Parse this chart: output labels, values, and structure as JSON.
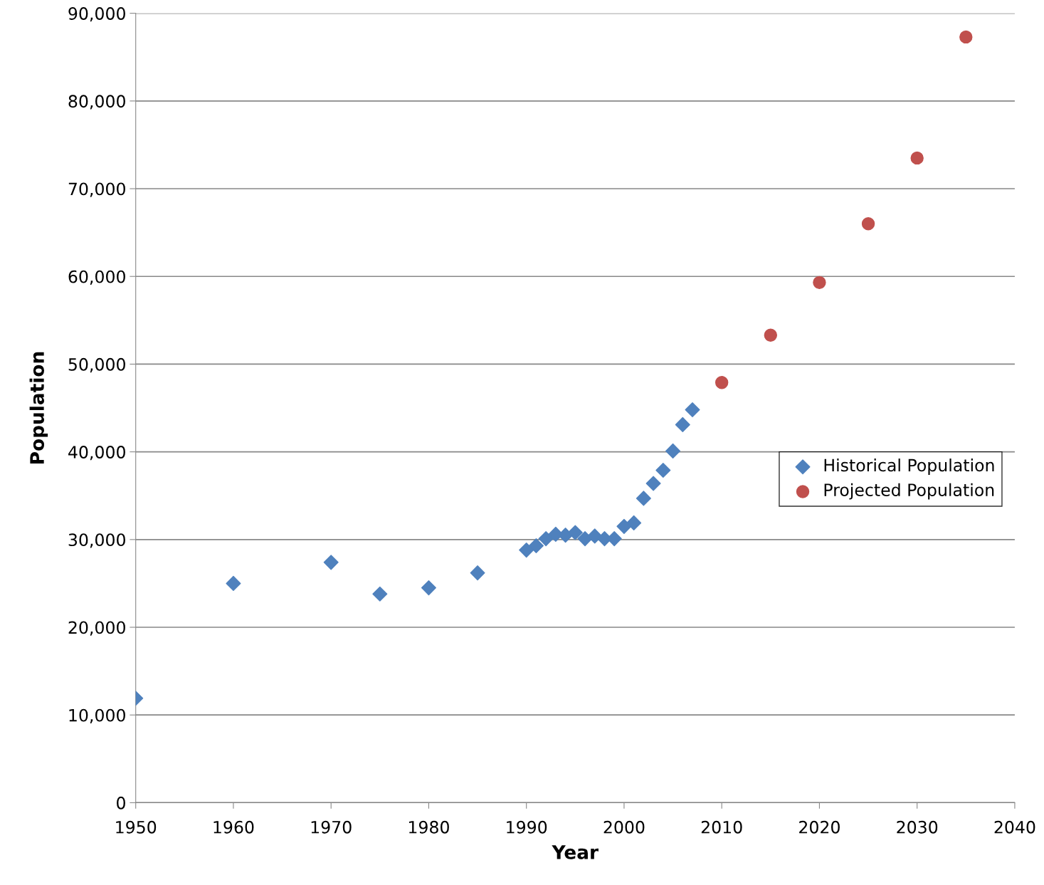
{
  "chart_data": {
    "type": "scatter",
    "xlabel": "Year",
    "ylabel": "Population",
    "series": [
      {
        "name": "Historical Population",
        "color": "#4f81bd",
        "marker": "diamond",
        "x": [
          1950,
          1960,
          1970,
          1975,
          1980,
          1985,
          1990,
          1991,
          1992,
          1993,
          1994,
          1995,
          1996,
          1997,
          1998,
          1999,
          2000,
          2001,
          2002,
          2003,
          2004,
          2005,
          2006,
          2007
        ],
        "values": [
          11900,
          25000,
          27400,
          23800,
          24500,
          26200,
          28800,
          29300,
          30100,
          30600,
          30500,
          30800,
          30100,
          30400,
          30100,
          30100,
          31500,
          31900,
          34700,
          36400,
          37900,
          40100,
          43100,
          44800
        ]
      },
      {
        "name": "Projected Population",
        "color": "#c0504d",
        "marker": "circle",
        "x": [
          2010,
          2015,
          2020,
          2025,
          2030,
          2035
        ],
        "values": [
          47900,
          53300,
          59300,
          66000,
          73500,
          87300
        ]
      }
    ],
    "xlim": [
      1950,
      2040
    ],
    "xticks": [
      1950,
      1960,
      1970,
      1980,
      1990,
      2000,
      2010,
      2020,
      2030,
      2040
    ],
    "ylim": [
      0,
      90000
    ],
    "yticks": [
      0,
      {
        "value": 10000,
        "label": "10,000"
      },
      {
        "value": 20000,
        "label": "20,000"
      },
      {
        "value": 30000,
        "label": "30,000"
      },
      {
        "value": 40000,
        "label": "40,000"
      },
      {
        "value": 50000,
        "label": "50,000"
      },
      {
        "value": 60000,
        "label": "60,000"
      },
      {
        "value": 70000,
        "label": "70,000"
      },
      {
        "value": 80000,
        "label": "80,000"
      },
      {
        "value": 90000,
        "label": "90,000"
      }
    ],
    "grid": "y",
    "legend": "right"
  }
}
